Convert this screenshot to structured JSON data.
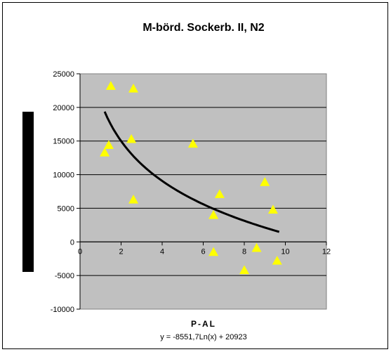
{
  "chart_data": {
    "type": "scatter",
    "title": "M-börd. Sockerb. II, N2",
    "xlabel": "P-AL",
    "ylabel": "",
    "xlim": [
      0,
      12
    ],
    "ylim": [
      -10000,
      25000
    ],
    "x_ticks": [
      0,
      2,
      4,
      6,
      8,
      10,
      12
    ],
    "y_ticks": [
      -10000,
      -5000,
      0,
      5000,
      10000,
      15000,
      20000,
      25000
    ],
    "x_tick_labels": [
      "0",
      "2",
      "4",
      "6",
      "8",
      "10",
      "12"
    ],
    "y_tick_labels": [
      "-10000",
      "-5000",
      "0",
      "5000",
      "10000",
      "15000",
      "20000",
      "25000"
    ],
    "grid": "horizontal",
    "plot_background": "#c0c0c0",
    "marker": "triangle",
    "marker_color": "#ffff00",
    "trendline": {
      "type": "logarithmic",
      "a": -8551.7,
      "b": 20923,
      "x_range": [
        1.2,
        9.7
      ],
      "color": "#000000",
      "equation_label": "y = -8551,7Ln(x) + 20923"
    },
    "points": [
      {
        "x": 1.2,
        "y": 13300
      },
      {
        "x": 1.4,
        "y": 14400
      },
      {
        "x": 1.5,
        "y": 23200
      },
      {
        "x": 2.5,
        "y": 15300
      },
      {
        "x": 2.6,
        "y": 22800
      },
      {
        "x": 2.6,
        "y": 6300
      },
      {
        "x": 5.5,
        "y": 14600
      },
      {
        "x": 6.5,
        "y": 4000
      },
      {
        "x": 6.5,
        "y": -1500
      },
      {
        "x": 6.8,
        "y": 7100
      },
      {
        "x": 8.0,
        "y": -4200
      },
      {
        "x": 8.6,
        "y": -900
      },
      {
        "x": 9.0,
        "y": 8900
      },
      {
        "x": 9.4,
        "y": 4800
      },
      {
        "x": 9.6,
        "y": -2800
      }
    ]
  }
}
